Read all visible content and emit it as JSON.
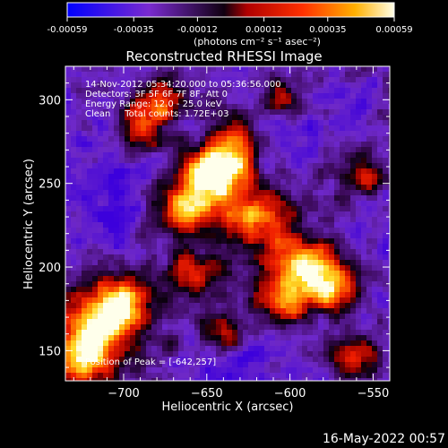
{
  "colorbar": {
    "tick_labels": [
      "-0.00059",
      "-0.00035",
      "-0.00012",
      "0.00012",
      "0.00035",
      "0.00059"
    ],
    "unit_label": "(photons cm⁻² s⁻¹ asec⁻²)",
    "range": [
      -0.00059,
      0.00059
    ]
  },
  "chart_data": {
    "type": "heatmap",
    "title": "Reconstructed RHESSI Image",
    "xlabel": "Heliocentric X (arcsec)",
    "ylabel": "Heliocentric Y (arcsec)",
    "xlim": [
      -735,
      -540
    ],
    "ylim": [
      132,
      320
    ],
    "x_ticks": [
      "−700",
      "−650",
      "−600",
      "−550"
    ],
    "x_tick_values": [
      -700,
      -650,
      -600,
      -550
    ],
    "y_ticks": [
      "300",
      "250",
      "200",
      "150"
    ],
    "y_tick_values": [
      300,
      250,
      200,
      150
    ],
    "colormap": "blue-purple-black-red-orange-yellow-white",
    "annotations": [
      "14-Nov-2012 05:34:20.000 to 05:36:56.000",
      "Detectors: 3F 5F 6F 7F 8F, Att 0",
      "Energy Range: 12.0 - 25.0 keV",
      "Clean     Total counts: 1.72E+03"
    ],
    "peak_label": "Position of Peak = [-642,257]",
    "peak": [
      -642,
      257
    ],
    "bright_features": [
      {
        "x": -648,
        "y": 254,
        "level": 1.0,
        "sx": 14,
        "sy": 11
      },
      {
        "x": -665,
        "y": 235,
        "level": 0.75,
        "sx": 13,
        "sy": 9
      },
      {
        "x": -635,
        "y": 272,
        "level": 0.7,
        "sx": 10,
        "sy": 12
      },
      {
        "x": -620,
        "y": 230,
        "level": 0.65,
        "sx": 12,
        "sy": 10
      },
      {
        "x": -592,
        "y": 200,
        "level": 0.85,
        "sx": 16,
        "sy": 12
      },
      {
        "x": -575,
        "y": 185,
        "level": 0.6,
        "sx": 10,
        "sy": 9
      },
      {
        "x": -605,
        "y": 178,
        "level": 0.6,
        "sx": 12,
        "sy": 9
      },
      {
        "x": -715,
        "y": 165,
        "level": 0.78,
        "sx": 14,
        "sy": 14
      },
      {
        "x": -700,
        "y": 180,
        "level": 0.65,
        "sx": 10,
        "sy": 10
      },
      {
        "x": -725,
        "y": 145,
        "level": 0.7,
        "sx": 10,
        "sy": 10
      },
      {
        "x": -690,
        "y": 285,
        "level": 0.55,
        "sx": 10,
        "sy": 12
      },
      {
        "x": -675,
        "y": 300,
        "level": 0.55,
        "sx": 10,
        "sy": 9
      },
      {
        "x": -560,
        "y": 145,
        "level": 0.55,
        "sx": 9,
        "sy": 10
      },
      {
        "x": -555,
        "y": 255,
        "level": 0.45,
        "sx": 8,
        "sy": 8
      },
      {
        "x": -640,
        "y": 160,
        "level": 0.45,
        "sx": 8,
        "sy": 8
      },
      {
        "x": -660,
        "y": 195,
        "level": 0.45,
        "sx": 9,
        "sy": 8
      },
      {
        "x": -605,
        "y": 300,
        "level": 0.4,
        "sx": 9,
        "sy": 8
      }
    ],
    "dim_regions": [
      {
        "x": -600,
        "y": 280,
        "sx": 22,
        "sy": 18
      },
      {
        "x": -700,
        "y": 240,
        "sx": 20,
        "sy": 22
      },
      {
        "x": -560,
        "y": 300,
        "sx": 14,
        "sy": 14
      },
      {
        "x": -640,
        "y": 140,
        "sx": 14,
        "sy": 10
      }
    ]
  },
  "footer": {
    "date": "16-May-2022 00:57"
  }
}
